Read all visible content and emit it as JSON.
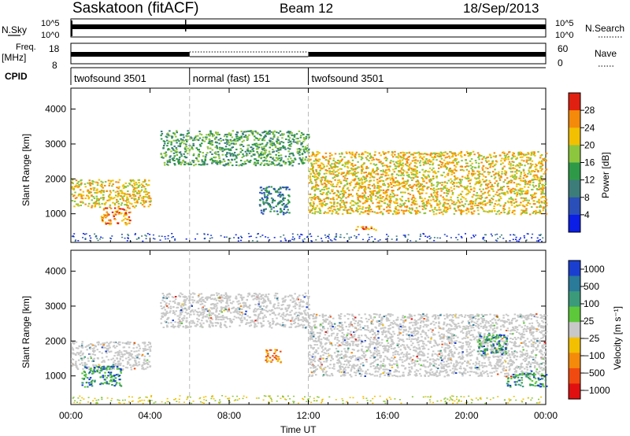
{
  "header": {
    "station": "Saskatoon (fitACF)",
    "beam": "Beam 12",
    "date": "18/Sep/2013"
  },
  "status_panels": {
    "nsky_label": "N.Sky",
    "nsky_ticks": [
      "10^5",
      "10^0"
    ],
    "nsearch_label": "N.Search",
    "nsearch_ticks": [
      "10^5",
      "10^0"
    ],
    "freq_label": "Freq.",
    "freq_unit": "[MHz]",
    "freq_ticks": [
      "18",
      "8"
    ],
    "nave_label": "Nave",
    "nave_ticks": [
      "60",
      "0"
    ],
    "cpid_label": "CPID",
    "cpid_segments": [
      {
        "label": "twofsound 3501",
        "start_h": 0,
        "end_h": 6
      },
      {
        "label": "normal (fast) 151",
        "start_h": 6,
        "end_h": 12
      },
      {
        "label": "twofsound 3501",
        "start_h": 12,
        "end_h": 24
      }
    ]
  },
  "x_axis": {
    "label": "Time UT",
    "ticks": [
      "00:00",
      "04:00",
      "08:00",
      "12:00",
      "16:00",
      "20:00",
      "00:00"
    ]
  },
  "power_panel": {
    "ylabel": "Slant Range [km]",
    "yticks": [
      "4000",
      "3000",
      "2000",
      "1000"
    ],
    "colorbar_label": "Power [dB]",
    "colorbar_ticks": [
      "28",
      "24",
      "20",
      "16",
      "12",
      "8",
      "4"
    ],
    "colors": [
      "#0a1ee6",
      "#2a4fb8",
      "#3c7d7a",
      "#2e9a48",
      "#8cc63e",
      "#f2c000",
      "#f58a0a",
      "#e02010"
    ]
  },
  "velocity_panel": {
    "ylabel": "Slant Range [km]",
    "yticks": [
      "4000",
      "3000",
      "2000",
      "1000"
    ],
    "colorbar_label": "Velocity [m s⁻¹]",
    "colorbar_ticks": [
      "1000",
      "500",
      "100",
      "25",
      "−25",
      "−100",
      "−500",
      "−1000"
    ],
    "colors": [
      "#1a3fd0",
      "#2a7a9a",
      "#3a9a7a",
      "#5cc83a",
      "#c8c8c8",
      "#f2c000",
      "#f58a0a",
      "#f04a10",
      "#e01010"
    ]
  },
  "chart_data": [
    {
      "type": "heatmap",
      "title": "Saskatoon (fitACF) Beam 12 18/Sep/2013",
      "xlabel": "Time UT",
      "ylabel": "Slant Range [km]",
      "xlim": [
        0,
        24
      ],
      "ylim": [
        180,
        4600
      ],
      "colorbar": "Power [dB]",
      "clim": [
        0,
        30
      ],
      "regions": [
        {
          "x": [
            0.0,
            4.0
          ],
          "y": [
            1200,
            2000
          ],
          "value": 22
        },
        {
          "x": [
            1.5,
            3.0
          ],
          "y": [
            700,
            1200
          ],
          "value": 24
        },
        {
          "x": [
            4.5,
            12.0
          ],
          "y": [
            2400,
            3400
          ],
          "value": 12
        },
        {
          "x": [
            9.5,
            11.0
          ],
          "y": [
            1000,
            1800
          ],
          "value": 8
        },
        {
          "x": [
            12.0,
            24.0
          ],
          "y": [
            1000,
            2800
          ],
          "value": 22
        },
        {
          "x": [
            14.0,
            15.5
          ],
          "y": [
            550,
            650
          ],
          "value": 24
        }
      ]
    },
    {
      "type": "heatmap",
      "title": "Saskatoon (fitACF) Beam 12 18/Sep/2013",
      "xlabel": "Time UT",
      "ylabel": "Slant Range [km]",
      "xlim": [
        0,
        24
      ],
      "ylim": [
        180,
        4600
      ],
      "colorbar": "Velocity [m s⁻¹]",
      "clim": [
        -1000,
        1000
      ],
      "regions": [
        {
          "x": [
            0.0,
            4.0
          ],
          "y": [
            1200,
            2000
          ],
          "value": 0
        },
        {
          "x": [
            0.5,
            2.5
          ],
          "y": [
            700,
            1300
          ],
          "value": 300
        },
        {
          "x": [
            4.5,
            12.0
          ],
          "y": [
            2400,
            3400
          ],
          "value": 0
        },
        {
          "x": [
            9.8,
            10.6
          ],
          "y": [
            1400,
            1800
          ],
          "value": -300
        },
        {
          "x": [
            12.0,
            24.0
          ],
          "y": [
            1000,
            2800
          ],
          "value": 0
        },
        {
          "x": [
            20.5,
            22.0
          ],
          "y": [
            1600,
            2200
          ],
          "value": 600
        },
        {
          "x": [
            22.0,
            24.0
          ],
          "y": [
            700,
            1100
          ],
          "value": 400
        }
      ]
    }
  ]
}
